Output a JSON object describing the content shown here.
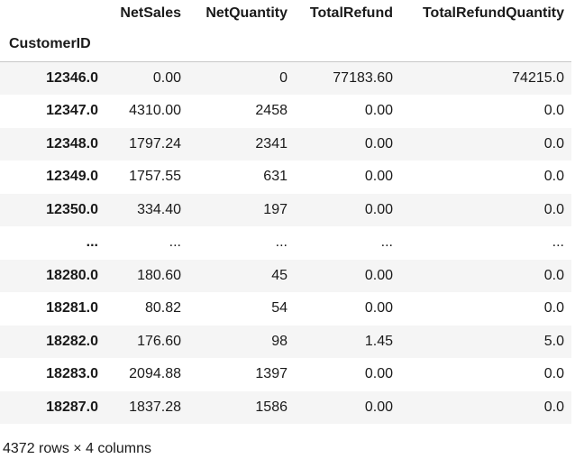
{
  "dataframe": {
    "columns": [
      "NetSales",
      "NetQuantity",
      "TotalRefund",
      "TotalRefundQuantity"
    ],
    "index_name": "CustomerID",
    "rows": [
      {
        "index": "12346.0",
        "values": [
          "0.00",
          "0",
          "77183.60",
          "74215.0"
        ]
      },
      {
        "index": "12347.0",
        "values": [
          "4310.00",
          "2458",
          "0.00",
          "0.0"
        ]
      },
      {
        "index": "12348.0",
        "values": [
          "1797.24",
          "2341",
          "0.00",
          "0.0"
        ]
      },
      {
        "index": "12349.0",
        "values": [
          "1757.55",
          "631",
          "0.00",
          "0.0"
        ]
      },
      {
        "index": "12350.0",
        "values": [
          "334.40",
          "197",
          "0.00",
          "0.0"
        ]
      },
      {
        "index": "...",
        "values": [
          "...",
          "...",
          "...",
          "..."
        ]
      },
      {
        "index": "18280.0",
        "values": [
          "180.60",
          "45",
          "0.00",
          "0.0"
        ]
      },
      {
        "index": "18281.0",
        "values": [
          "80.82",
          "54",
          "0.00",
          "0.0"
        ]
      },
      {
        "index": "18282.0",
        "values": [
          "176.60",
          "98",
          "1.45",
          "5.0"
        ]
      },
      {
        "index": "18283.0",
        "values": [
          "2094.88",
          "1397",
          "0.00",
          "0.0"
        ]
      },
      {
        "index": "18287.0",
        "values": [
          "1837.28",
          "1586",
          "0.00",
          "0.0"
        ]
      }
    ],
    "footer": "4372 rows × 4 columns"
  }
}
